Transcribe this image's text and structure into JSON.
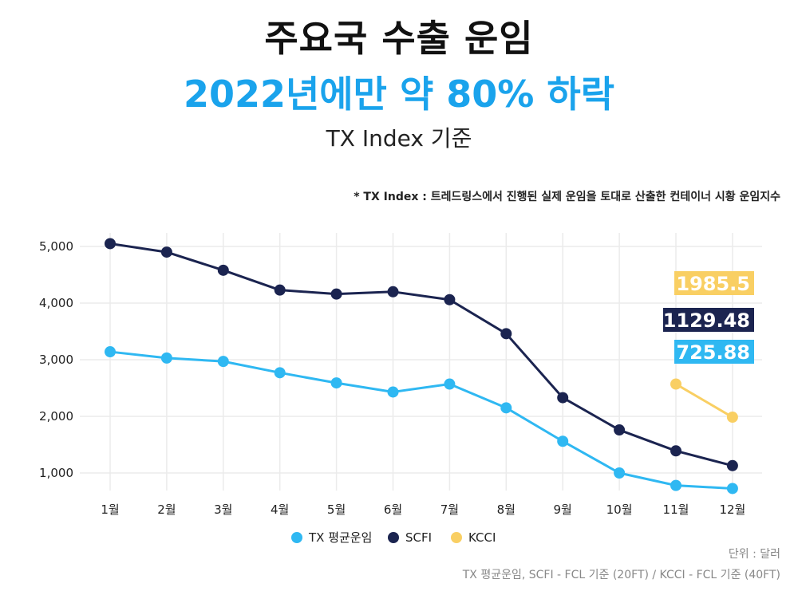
{
  "header": {
    "title": "주요국 수출 운임",
    "subtitle": "2022년에만 약 80% 하락",
    "index_basis": "TX Index 기준",
    "note": "* TX Index : 트레드링스에서 진행된 실제 운임을 토대로 산출한 컨테이너 시황 운임지수"
  },
  "footer": {
    "unit": "단위 : 달러",
    "source": "TX 평균운임, SCFI - FCL 기준 (20FT) / KCCI - FCL 기준 (40FT)"
  },
  "chart_data": {
    "type": "line",
    "title": "주요국 수출 운임",
    "categories": [
      "1월",
      "2월",
      "3월",
      "4월",
      "5월",
      "6월",
      "7월",
      "8월",
      "9월",
      "10월",
      "11월",
      "12월"
    ],
    "y_ticks": [
      1000,
      2000,
      3000,
      4000,
      5000
    ],
    "y_tick_labels": [
      "1,000",
      "2,000",
      "3,000",
      "4,000",
      "5,000"
    ],
    "ylim": [
      700,
      5100
    ],
    "grid": true,
    "legend_position": "bottom",
    "series": [
      {
        "name": "TX 평균운임",
        "color": "#2fb8f2",
        "values": [
          3140,
          3030,
          2970,
          2770,
          2590,
          2430,
          2570,
          2150,
          1560,
          1000,
          780,
          725.88
        ]
      },
      {
        "name": "SCFI",
        "color": "#1b2450",
        "values": [
          5050,
          4900,
          4580,
          4230,
          4160,
          4200,
          4060,
          3460,
          2330,
          1760,
          1390,
          1129.48
        ]
      },
      {
        "name": "KCCI",
        "color": "#f9cf63",
        "values": [
          null,
          null,
          null,
          null,
          null,
          null,
          null,
          null,
          null,
          null,
          2570,
          1985.5
        ]
      }
    ],
    "end_labels": [
      {
        "series": "KCCI",
        "text": "1985.5",
        "color": "#f9cf63"
      },
      {
        "series": "SCFI",
        "text": "1129.48",
        "color": "#1b2450"
      },
      {
        "series": "TX 평균운임",
        "text": "725.88",
        "color": "#2fb8f2"
      }
    ]
  }
}
